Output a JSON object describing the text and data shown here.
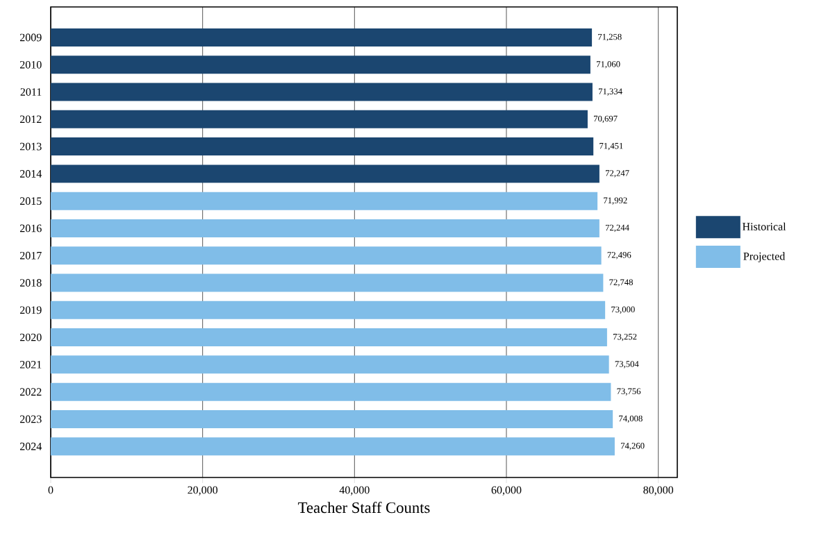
{
  "chart_data": {
    "type": "bar",
    "orientation": "horizontal",
    "xlabel": "Teacher Staff Counts",
    "categories": [
      "2009",
      "2010",
      "2011",
      "2012",
      "2013",
      "2014",
      "2015",
      "2016",
      "2017",
      "2018",
      "2019",
      "2020",
      "2021",
      "2022",
      "2023",
      "2024"
    ],
    "series": [
      {
        "name": "Historical",
        "color": "#1b4670",
        "values": [
          71258,
          71060,
          71334,
          70697,
          71451,
          72247,
          null,
          null,
          null,
          null,
          null,
          null,
          null,
          null,
          null,
          null
        ],
        "value_labels": [
          "71,258",
          "71,060",
          "71,334",
          "70,697",
          "71,451",
          "72,247",
          null,
          null,
          null,
          null,
          null,
          null,
          null,
          null,
          null,
          null
        ]
      },
      {
        "name": "Projected",
        "color": "#80bde8",
        "values": [
          null,
          null,
          null,
          null,
          null,
          null,
          71992,
          72244,
          72496,
          72748,
          73000,
          73252,
          73504,
          73756,
          74008,
          74260
        ],
        "value_labels": [
          null,
          null,
          null,
          null,
          null,
          null,
          "71,992",
          "72,244",
          "72,496",
          "72,748",
          "73,000",
          "73,252",
          "73,504",
          "73,756",
          "74,008",
          "74,260"
        ]
      }
    ],
    "xlim": [
      0,
      82500
    ],
    "xticks": [
      0,
      {
        "value": 20000,
        "label": "20,000"
      },
      {
        "value": 40000,
        "label": "40,000"
      },
      {
        "value": 60000,
        "label": "60,000"
      },
      {
        "value": 80000,
        "label": "80,000"
      }
    ],
    "grid": "x",
    "legend": "right"
  }
}
